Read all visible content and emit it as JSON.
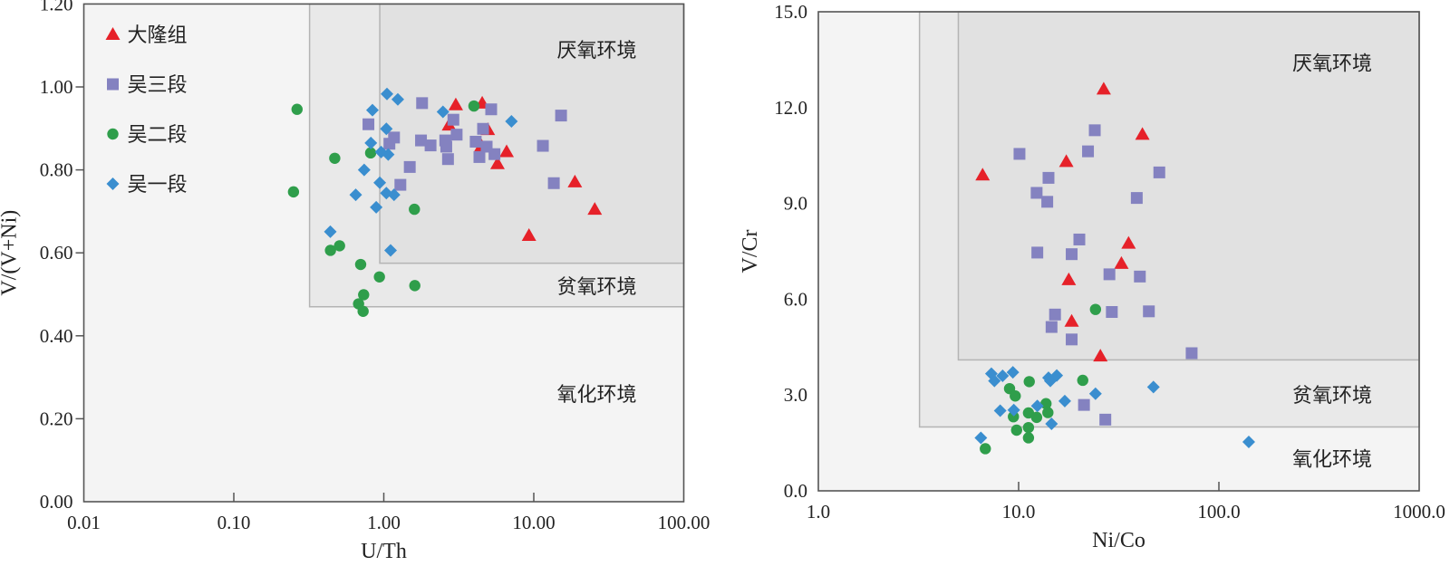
{
  "chart_data": [
    {
      "type": "scatter",
      "xlabel": "U/Th",
      "ylabel": "V/(V+Ni)",
      "x_scale": "log",
      "xlim": [
        0.01,
        100
      ],
      "ylim": [
        0,
        1.2
      ],
      "x_ticks": [
        "0.01",
        "0.10",
        "1.00",
        "10.00",
        "100.00"
      ],
      "x_tick_values": [
        0.01,
        0.1,
        1,
        10,
        100
      ],
      "y_ticks": [
        "0.00",
        "0.20",
        "0.40",
        "0.60",
        "0.80",
        "1.00",
        "1.20"
      ],
      "y_tick_values": [
        0,
        0.2,
        0.4,
        0.6,
        0.8,
        1.0,
        1.2
      ],
      "grid": false,
      "legend": "top-left",
      "regions": [
        {
          "label": "氧化环境",
          "x_min": 0.01,
          "y_min": 0,
          "color": "#f4f4f4",
          "label_at": [
            40,
            0.26
          ]
        },
        {
          "label": "贫氧环境",
          "x_min": 0.32,
          "y_min": 0.47,
          "color": "#e9e9e9",
          "label_at": [
            40,
            0.52
          ]
        },
        {
          "label": "厌氧环境",
          "x_min": 0.94,
          "y_min": 0.575,
          "color": "#e1e1e1",
          "label_at": [
            40,
            1.09
          ]
        }
      ],
      "series": [
        {
          "name": "大隆组",
          "marker": "triangle",
          "color": "#e62129",
          "points": [
            [
              3.02,
              0.957
            ],
            [
              4.53,
              0.961
            ],
            [
              2.72,
              0.908
            ],
            [
              4.94,
              0.897
            ],
            [
              4.48,
              0.858
            ],
            [
              6.59,
              0.844
            ],
            [
              5.73,
              0.815
            ],
            [
              18.8,
              0.771
            ],
            [
              25.5,
              0.705
            ],
            [
              9.29,
              0.642
            ]
          ]
        },
        {
          "name": "吴三段",
          "marker": "square",
          "color": "#8482c0",
          "points": [
            [
              1.8,
              0.961
            ],
            [
              0.79,
              0.91
            ],
            [
              2.91,
              0.921
            ],
            [
              1.17,
              0.878
            ],
            [
              1.09,
              0.863
            ],
            [
              1.77,
              0.871
            ],
            [
              2.05,
              0.859
            ],
            [
              2.57,
              0.871
            ],
            [
              2.61,
              0.856
            ],
            [
              2.68,
              0.826
            ],
            [
              3.06,
              0.885
            ],
            [
              1.49,
              0.807
            ],
            [
              1.29,
              0.764
            ],
            [
              5.2,
              0.946
            ],
            [
              4.59,
              0.899
            ],
            [
              4.1,
              0.868
            ],
            [
              4.85,
              0.856
            ],
            [
              5.47,
              0.838
            ],
            [
              4.34,
              0.831
            ],
            [
              11.5,
              0.858
            ],
            [
              15.2,
              0.931
            ],
            [
              13.6,
              0.768
            ]
          ]
        },
        {
          "name": "吴二段",
          "marker": "circle",
          "color": "#2f9e4b",
          "points": [
            [
              0.264,
              0.946
            ],
            [
              0.471,
              0.828
            ],
            [
              0.817,
              0.841
            ],
            [
              0.25,
              0.747
            ],
            [
              1.6,
              0.705
            ],
            [
              0.441,
              0.606
            ],
            [
              0.507,
              0.617
            ],
            [
              0.701,
              0.572
            ],
            [
              0.935,
              0.542
            ],
            [
              1.61,
              0.521
            ],
            [
              0.734,
              0.499
            ],
            [
              0.679,
              0.477
            ],
            [
              0.728,
              0.459
            ],
            [
              3.99,
              0.954
            ]
          ]
        },
        {
          "name": "吴一段",
          "marker": "diamond",
          "color": "#3a8ecf",
          "points": [
            [
              1.05,
              0.983
            ],
            [
              1.24,
              0.97
            ],
            [
              0.84,
              0.944
            ],
            [
              2.48,
              0.94
            ],
            [
              1.04,
              0.899
            ],
            [
              0.82,
              0.865
            ],
            [
              0.96,
              0.843
            ],
            [
              1.07,
              0.837
            ],
            [
              0.74,
              0.8
            ],
            [
              0.94,
              0.769
            ],
            [
              0.65,
              0.74
            ],
            [
              1.04,
              0.744
            ],
            [
              1.17,
              0.74
            ],
            [
              0.89,
              0.71
            ],
            [
              0.44,
              0.651
            ],
            [
              1.11,
              0.606
            ],
            [
              7.1,
              0.917
            ]
          ]
        }
      ]
    },
    {
      "type": "scatter",
      "xlabel": "Ni/Co",
      "ylabel": "V/Cr",
      "x_scale": "log",
      "xlim": [
        1,
        1000
      ],
      "ylim": [
        0,
        15
      ],
      "x_ticks": [
        "1.0",
        "10.0",
        "100.0",
        "1000.0"
      ],
      "x_tick_values": [
        1,
        10,
        100,
        1000
      ],
      "y_ticks": [
        "0.0",
        "3.0",
        "6.0",
        "9.0",
        "12.0",
        "15.0"
      ],
      "y_tick_values": [
        0,
        3,
        6,
        9,
        12,
        15
      ],
      "grid": false,
      "legend": "none",
      "regions": [
        {
          "label": "氧化环境",
          "x_min": 1,
          "y_min": 0,
          "color": "#f4f4f4",
          "label_at": [
            400,
            1.0
          ]
        },
        {
          "label": "贫氧环境",
          "x_min": 3.2,
          "y_min": 2.0,
          "color": "#e9e9e9",
          "label_at": [
            400,
            3.0
          ]
        },
        {
          "label": "厌氧环境",
          "x_min": 5.0,
          "y_min": 4.1,
          "color": "#e1e1e1",
          "label_at": [
            400,
            13.4
          ]
        }
      ],
      "series": [
        {
          "name": "大隆组",
          "marker": "triangle",
          "color": "#e62129",
          "points": [
            [
              26.6,
              12.58
            ],
            [
              41.5,
              11.16
            ],
            [
              17.3,
              10.31
            ],
            [
              6.61,
              9.89
            ],
            [
              35.4,
              7.75
            ],
            [
              32.6,
              7.12
            ],
            [
              17.8,
              6.61
            ],
            [
              18.4,
              5.31
            ],
            [
              25.6,
              4.22
            ]
          ]
        },
        {
          "name": "吴三段",
          "marker": "square",
          "color": "#8482c0",
          "points": [
            [
              24.0,
              11.29
            ],
            [
              10.1,
              10.55
            ],
            [
              22.2,
              10.63
            ],
            [
              14.1,
              9.8
            ],
            [
              12.3,
              9.33
            ],
            [
              13.9,
              9.05
            ],
            [
              50.4,
              9.97
            ],
            [
              38.9,
              9.17
            ],
            [
              20.1,
              7.87
            ],
            [
              12.4,
              7.46
            ],
            [
              18.4,
              7.41
            ],
            [
              28.4,
              6.78
            ],
            [
              40.3,
              6.71
            ],
            [
              15.2,
              5.52
            ],
            [
              14.6,
              5.13
            ],
            [
              29.2,
              5.6
            ],
            [
              44.7,
              5.62
            ],
            [
              18.4,
              4.74
            ],
            [
              73.1,
              4.31
            ],
            [
              21.2,
              2.69
            ],
            [
              27.1,
              2.23
            ]
          ]
        },
        {
          "name": "吴二段",
          "marker": "circle",
          "color": "#2f9e4b",
          "points": [
            [
              24.2,
              5.68
            ],
            [
              11.3,
              3.42
            ],
            [
              20.9,
              3.46
            ],
            [
              9.01,
              3.2
            ],
            [
              9.62,
              2.97
            ],
            [
              13.7,
              2.73
            ],
            [
              14.0,
              2.45
            ],
            [
              9.42,
              2.32
            ],
            [
              11.2,
              2.44
            ],
            [
              12.3,
              2.3
            ],
            [
              9.77,
              1.9
            ],
            [
              11.2,
              1.98
            ],
            [
              11.2,
              1.66
            ],
            [
              6.82,
              1.32
            ]
          ]
        },
        {
          "name": "吴一段",
          "marker": "diamond",
          "color": "#3a8ecf",
          "points": [
            [
              7.31,
              3.67
            ],
            [
              7.57,
              3.44
            ],
            [
              8.32,
              3.6
            ],
            [
              9.36,
              3.71
            ],
            [
              14.1,
              3.54
            ],
            [
              14.4,
              3.44
            ],
            [
              15.5,
              3.61
            ],
            [
              24.2,
              3.04
            ],
            [
              17.0,
              2.81
            ],
            [
              12.4,
              2.66
            ],
            [
              8.09,
              2.51
            ],
            [
              9.46,
              2.53
            ],
            [
              14.6,
              2.1
            ],
            [
              6.48,
              1.66
            ],
            [
              47.1,
              3.25
            ],
            [
              141,
              1.53
            ]
          ]
        }
      ]
    }
  ]
}
